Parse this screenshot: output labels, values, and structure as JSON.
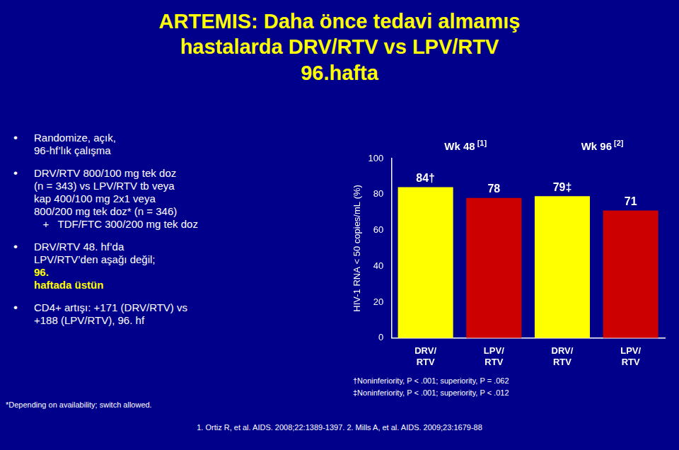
{
  "chart_data": {
    "type": "bar",
    "title": [
      "ARTEMIS: Daha önce tedavi almamış",
      "hastalarda DRV/RTV vs LPV/RTV",
      "96.hafta"
    ],
    "ylabel": "HIV-1 RNA < 50 copies/mL (%)",
    "categories": [
      "DRV/\nRTV",
      "LPV/\nRTV",
      "DRV/\nRTV",
      "LPV/\nRTV"
    ],
    "values": [
      84,
      78,
      79,
      71
    ],
    "colors": [
      "#FFFF00",
      "#CC0000",
      "#FFFF00",
      "#CC0000"
    ],
    "data_labels": true,
    "value_labels": [
      "84†",
      "78",
      "79‡",
      "71"
    ],
    "ylim": [
      0,
      100
    ],
    "yticks": [
      0,
      20,
      40,
      60,
      80,
      100
    ],
    "grid": false,
    "groups": [
      {
        "label": "Wk 48",
        "note": "[1]",
        "categories": [
          0,
          1
        ]
      },
      {
        "label": "Wk 96",
        "note": "[2]",
        "categories": [
          2,
          3
        ]
      }
    ],
    "annotations": [
      {
        "bullet": "•",
        "text": "Randomize, açık,\n96-hf’lık çalışma"
      },
      {
        "bullet": "•",
        "text": "DRV/RTV 800/100 mg tek doz\n(n = 343) vs LPV/RTV tb veya\nkap 400/100 mg 2x1 veya\n800/200 mg tek doz* (n = 346)\n   +   TDF/FTC 300/200 mg tek doz"
      },
      {
        "bullet": "•",
        "text": "DRV/RTV 48. hf’da\nLPV/RTV’den aşağı değil; "
      },
      {
        "text": "96.\nhaftada üstün",
        "color": "#FFFF00"
      },
      {
        "bullet": "•",
        "text": "CD4+ artışı: +171 (DRV/RTV) vs\n+188 (LPV/RTV), 96. hf"
      }
    ],
    "footnotes": [
      "†Noninferiority, P < .001; superiority, P = .062",
      "‡Noninferiority, P < .001; superiority, P < .012"
    ],
    "notes": [
      "*Depending on availability; switch allowed."
    ],
    "source": "1. Ortiz R, et al. AIDS. 2008;22:1389-1397. 2. Mills A, et al. AIDS. 2009;23:1679-88"
  }
}
